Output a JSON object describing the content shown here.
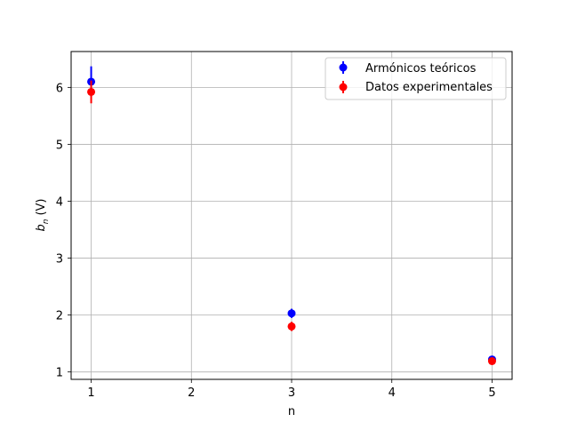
{
  "chart_data": {
    "type": "scatter",
    "xlabel": "n",
    "ylabel": {
      "base": "b",
      "subscript": "n",
      "unit": "(V)"
    },
    "xlim": [
      0.8,
      5.2
    ],
    "ylim": [
      0.87,
      6.63
    ],
    "xticks": [
      1,
      2,
      3,
      4,
      5
    ],
    "yticks": [
      1,
      2,
      3,
      4,
      5,
      6
    ],
    "grid": true,
    "legend_position": "top-right",
    "series": [
      {
        "name": "Armónicos teóricos",
        "color": "#0000ff",
        "x": [
          1,
          3,
          5
        ],
        "y": [
          6.1,
          2.03,
          1.22
        ],
        "yerr": [
          0.27,
          0.08,
          0.04
        ]
      },
      {
        "name": "Datos experimentales",
        "color": "#ff0000",
        "x": [
          1,
          3,
          5
        ],
        "y": [
          5.92,
          1.8,
          1.19
        ],
        "yerr": [
          0.2,
          0.08,
          0.05
        ]
      }
    ]
  }
}
